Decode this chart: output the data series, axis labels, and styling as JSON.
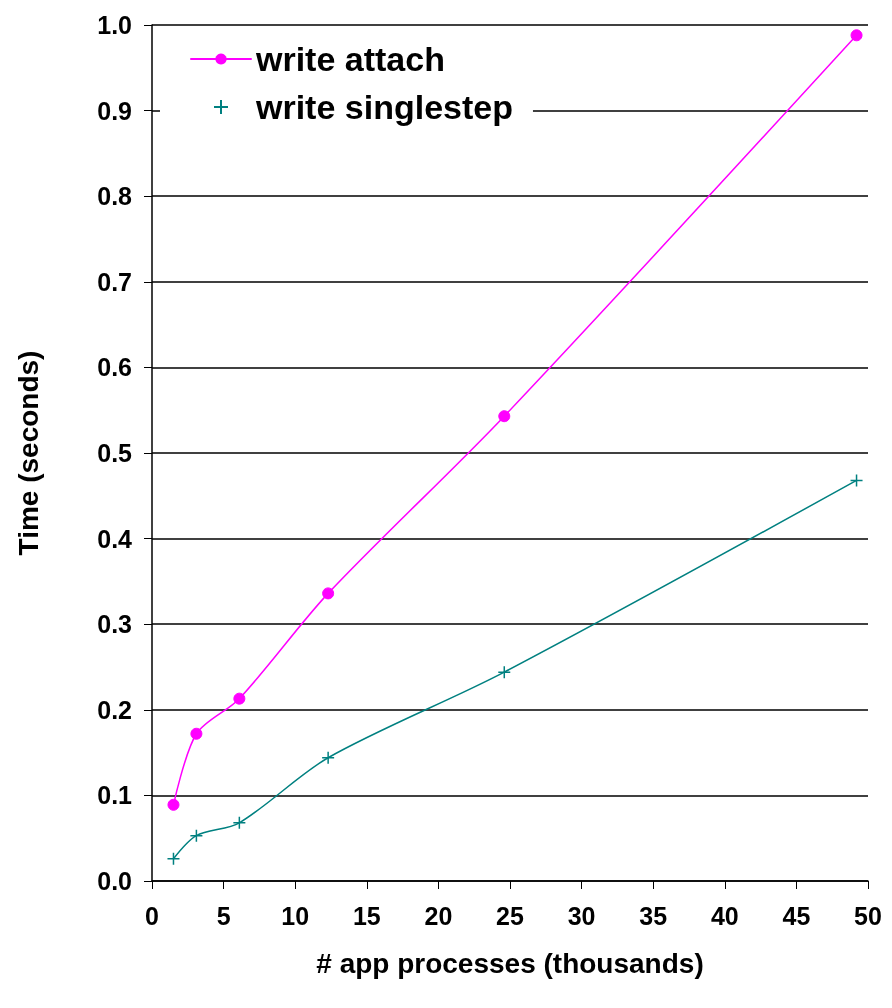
{
  "chart_data": {
    "type": "line",
    "xlabel": "# app processes (thousands)",
    "ylabel": "Time (seconds)",
    "xlim": [
      0,
      50
    ],
    "xticks": [
      0,
      5,
      10,
      15,
      20,
      25,
      30,
      35,
      40,
      45,
      50
    ],
    "ylim": [
      0,
      1
    ],
    "yticks": [
      {
        "value": 0,
        "label": "0.0"
      },
      0.1,
      0.2,
      0.3,
      0.4,
      0.5,
      0.6,
      0.7,
      0.8,
      0.9,
      {
        "value": 1,
        "label": "1.0"
      }
    ],
    "grid": "y",
    "legend": "top left",
    "series": [
      {
        "name": "write attach",
        "color": "#ff00ff",
        "marker": "circle",
        "x": [
          1.5,
          3.1,
          6.1,
          12.3,
          24.6,
          49.2
        ],
        "values": [
          0.089,
          0.172,
          0.213,
          0.336,
          0.543,
          0.988
        ]
      },
      {
        "name": "write singlestep",
        "color": "#008080",
        "marker": "cross",
        "x": [
          1.5,
          3.1,
          6.1,
          12.3,
          24.6,
          49.2
        ],
        "values": [
          0.026,
          0.053,
          0.068,
          0.144,
          0.244,
          0.468
        ]
      }
    ]
  }
}
